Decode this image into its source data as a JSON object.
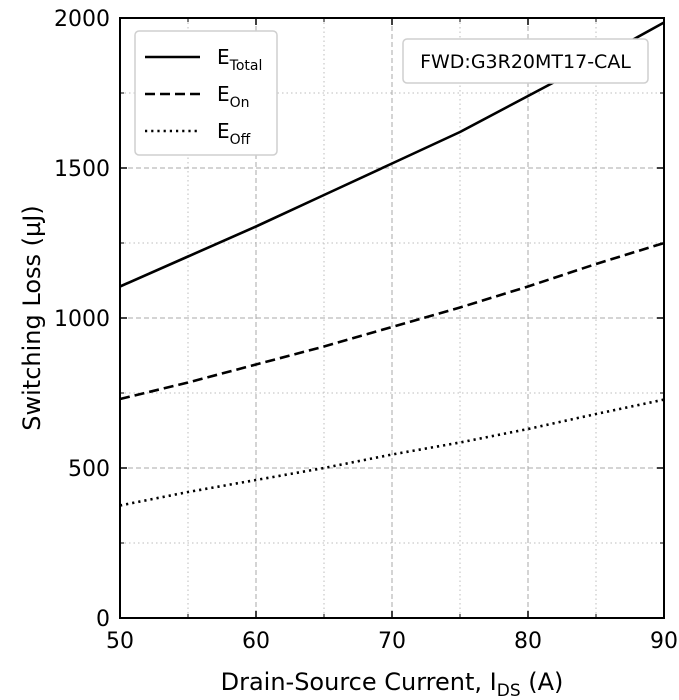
{
  "chart_data": {
    "type": "line",
    "xlabel": "Drain-Source Current, I",
    "xlabel_sub": "DS",
    "xlabel_suffix": " (A)",
    "ylabel": "Switching Loss (µJ)",
    "xlim": [
      50,
      90
    ],
    "ylim": [
      0,
      2000
    ],
    "x_ticks": [
      50,
      60,
      70,
      80,
      90
    ],
    "y_ticks": [
      0,
      500,
      1000,
      1500,
      2000
    ],
    "x_minor": [
      55,
      65,
      75,
      85
    ],
    "y_minor": [
      250,
      750,
      1250,
      1750
    ],
    "grid": true,
    "legend_position": "top-left",
    "annotation": "FWD:G3R20MT17-CAL",
    "series": [
      {
        "name": "E",
        "name_sub": "Total",
        "style": "solid",
        "x": [
          50,
          55,
          60,
          65,
          70,
          75,
          80,
          85,
          90
        ],
        "y": [
          1105,
          1205,
          1305,
          1410,
          1515,
          1620,
          1740,
          1860,
          1985
        ]
      },
      {
        "name": "E",
        "name_sub": "On",
        "style": "dashed",
        "x": [
          50,
          55,
          60,
          65,
          70,
          75,
          80,
          85,
          90
        ],
        "y": [
          730,
          785,
          845,
          905,
          970,
          1035,
          1105,
          1180,
          1250
        ]
      },
      {
        "name": "E",
        "name_sub": "Off",
        "style": "dotted",
        "x": [
          50,
          55,
          60,
          65,
          70,
          75,
          80,
          85,
          90
        ],
        "y": [
          375,
          420,
          460,
          500,
          545,
          585,
          630,
          680,
          728
        ]
      }
    ]
  }
}
